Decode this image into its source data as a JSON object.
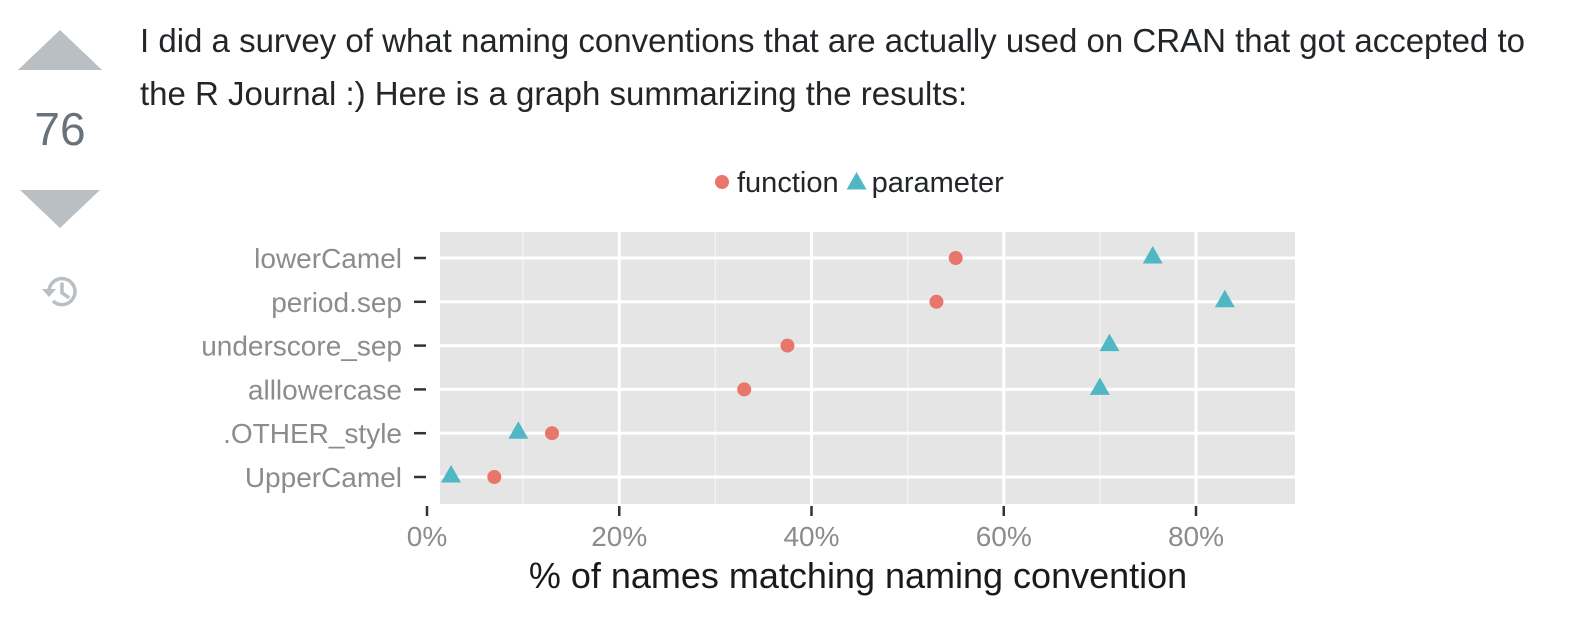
{
  "post": {
    "score": "76",
    "body_text": "I did a survey of what naming conventions that are actually used on CRAN that got accepted to the R Journal :) Here is a graph summarizing the results:"
  },
  "icons": {
    "upvote": "triangle-up",
    "downvote": "triangle-down",
    "history": "history-clock"
  },
  "chart_data": {
    "type": "scatter",
    "categories": [
      "lowerCamel",
      "period.sep",
      "underscore_sep",
      "alllowercase",
      ".OTHER_style",
      "UpperCamel"
    ],
    "series": [
      {
        "name": "function",
        "color": "#e8766a",
        "marker": "circle",
        "values": [
          55,
          53,
          37.5,
          33,
          13,
          7
        ]
      },
      {
        "name": "parameter",
        "color": "#4fb8c4",
        "marker": "triangle",
        "values": [
          75.5,
          83,
          71,
          70,
          9.5,
          2.5
        ]
      }
    ],
    "xlabel": "% of names matching naming convention",
    "x_ticks": [
      "0%",
      "20%",
      "40%",
      "60%",
      "80%"
    ],
    "xlim": [
      0,
      90
    ],
    "legend_position": "top",
    "grid": true,
    "background": "#e5e5e5"
  }
}
